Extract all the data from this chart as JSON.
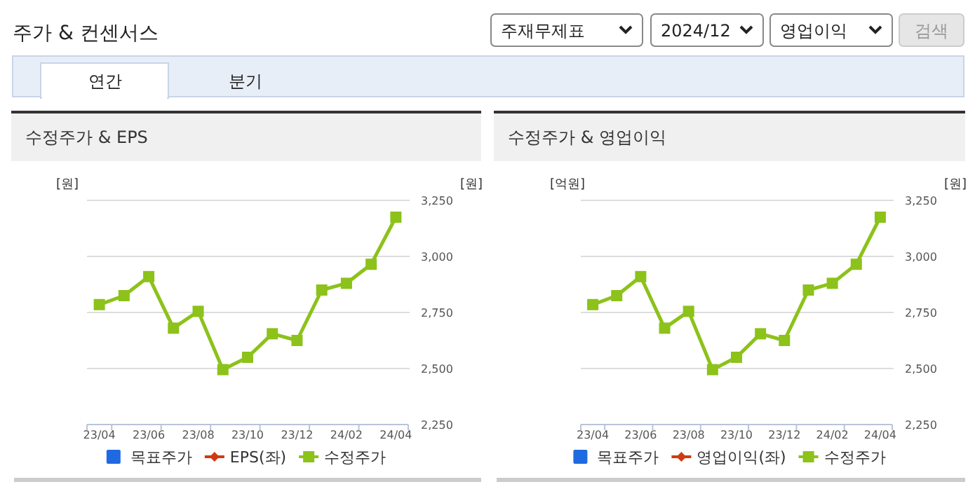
{
  "chart_data": [
    {
      "type": "other",
      "title": "주가 & 컨센서스",
      "annotations": [
        "주재무제표",
        "2024/12",
        "영업이익",
        "검색",
        "연간",
        "분기"
      ]
    },
    {
      "type": "line",
      "title": "수정주가 & EPS",
      "ylabel": "[원]",
      "y2label": "[원]",
      "categories": [
        "23/04",
        null,
        "23/06",
        null,
        "23/08",
        null,
        "23/10",
        null,
        "23/12",
        null,
        "24/02",
        null,
        "24/04"
      ],
      "series": [
        {
          "name": "목표주가",
          "type": "bar",
          "color": "#1f6ae0",
          "values": [
            null,
            null,
            null,
            null,
            null,
            null,
            null,
            null,
            null,
            null,
            null,
            null,
            null
          ]
        },
        {
          "name": "EPS(좌)",
          "color": "#d03a10",
          "marker": "diamond",
          "values": [
            null,
            null,
            null,
            null,
            null,
            null,
            null,
            null,
            null,
            null,
            null,
            null,
            null
          ]
        },
        {
          "name": "수정주가",
          "color": "#8cc21a",
          "axis": "y2",
          "values": [
            2785,
            2825,
            2910,
            2680,
            2755,
            2495,
            2550,
            2655,
            2625,
            2850,
            2880,
            2965,
            3175
          ]
        }
      ],
      "y2lim": [
        2250,
        3250
      ],
      "y2ticks": [
        {
          "value": 2250,
          "label": "2,250"
        },
        {
          "value": 2500,
          "label": "2,500"
        },
        {
          "value": 2750,
          "label": "2,750"
        },
        {
          "value": 3000,
          "label": "3,000"
        },
        {
          "value": 3250,
          "label": "3,250"
        }
      ],
      "grid": "y",
      "legend": "bottom",
      "marker": "square"
    },
    {
      "type": "line",
      "title": "수정주가 & 영업이익",
      "ylabel": "[억원]",
      "y2label": "[원]",
      "categories": [
        "23/04",
        null,
        "23/06",
        null,
        "23/08",
        null,
        "23/10",
        null,
        "23/12",
        null,
        "24/02",
        null,
        "24/04"
      ],
      "series": [
        {
          "name": "목표주가",
          "type": "bar",
          "color": "#1f6ae0",
          "values": [
            null,
            null,
            null,
            null,
            null,
            null,
            null,
            null,
            null,
            null,
            null,
            null,
            null
          ]
        },
        {
          "name": "영업이익(좌)",
          "color": "#d03a10",
          "marker": "diamond",
          "values": [
            null,
            null,
            null,
            null,
            null,
            null,
            null,
            null,
            null,
            null,
            null,
            null,
            null
          ]
        },
        {
          "name": "수정주가",
          "color": "#8cc21a",
          "axis": "y2",
          "values": [
            2785,
            2825,
            2910,
            2680,
            2755,
            2495,
            2550,
            2655,
            2625,
            2850,
            2880,
            2965,
            3175
          ]
        }
      ],
      "y2lim": [
        2250,
        3250
      ],
      "y2ticks": [
        {
          "value": 2250,
          "label": "2,250"
        },
        {
          "value": 2500,
          "label": "2,500"
        },
        {
          "value": 2750,
          "label": "2,750"
        },
        {
          "value": 3000,
          "label": "3,000"
        },
        {
          "value": 3250,
          "label": "3,250"
        }
      ],
      "grid": "y",
      "legend": "bottom",
      "marker": "square"
    }
  ]
}
